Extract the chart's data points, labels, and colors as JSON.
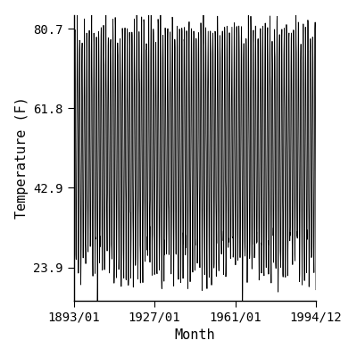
{
  "title": "",
  "xlabel": "Month",
  "ylabel": "Temperature (F)",
  "x_start_year": 1893,
  "x_start_month": 1,
  "x_end_year": 1994,
  "x_end_month": 12,
  "yticks": [
    23.9,
    42.9,
    61.8,
    80.7
  ],
  "ylim": [
    16.0,
    84.0
  ],
  "xtick_labels": [
    "1893/01",
    "1927/01",
    "1961/01",
    "1994/12"
  ],
  "xtick_years": [
    1893,
    1927,
    1961,
    1994
  ],
  "xtick_months": [
    1,
    1,
    1,
    12
  ],
  "summer_high": 80.7,
  "winter_low": 23.9,
  "line_color": "#000000",
  "background_color": "#ffffff",
  "font_family": "monospace",
  "font_size": 10,
  "tick_direction": "out"
}
